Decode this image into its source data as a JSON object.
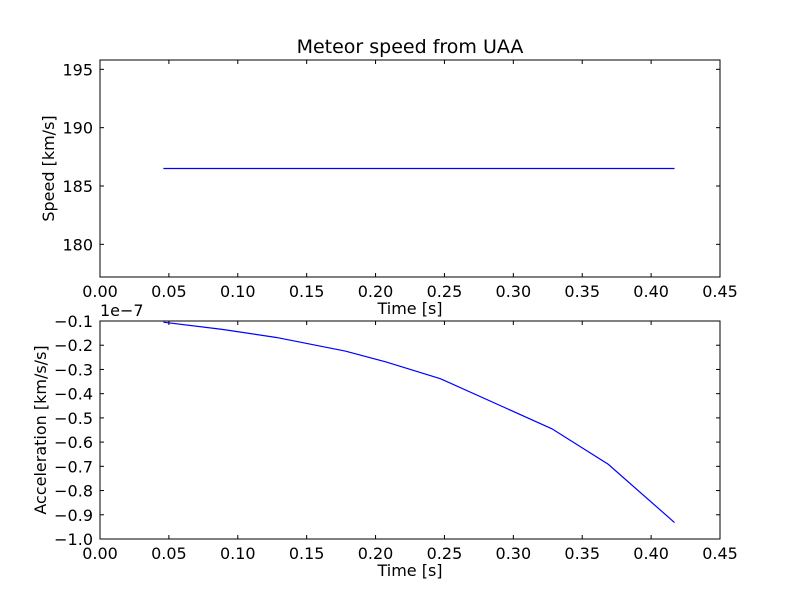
{
  "chart_data": [
    {
      "type": "line",
      "title": "Meteor speed from  UAA",
      "xlabel": "Time [s]",
      "ylabel": "Speed [km/s]",
      "xlim": [
        0.0,
        0.45
      ],
      "ylim": [
        177.2,
        195.8
      ],
      "xticks": [
        0.0,
        0.05,
        0.1,
        0.15,
        0.2,
        0.25,
        0.3,
        0.35,
        0.4,
        0.45
      ],
      "xtick_labels": [
        "0.00",
        "0.05",
        "0.10",
        "0.15",
        "0.20",
        "0.25",
        "0.30",
        "0.35",
        "0.40",
        "0.45"
      ],
      "yticks": [
        180,
        185,
        190,
        195
      ],
      "ytick_labels": [
        "180",
        "185",
        "190",
        "195"
      ],
      "grid": false,
      "series": [
        {
          "color": "#0000ff",
          "x": [
            0.046,
            0.417
          ],
          "y": [
            186.5,
            186.5
          ]
        }
      ]
    },
    {
      "type": "line",
      "title": "",
      "xlabel": "Time [s]",
      "ylabel": "Acceleration [km/s/s]",
      "offset_text": "1e−7",
      "xlim": [
        0.0,
        0.45
      ],
      "ylim": [
        -1.0,
        -0.1
      ],
      "xticks": [
        0.0,
        0.05,
        0.1,
        0.15,
        0.2,
        0.25,
        0.3,
        0.35,
        0.4,
        0.45
      ],
      "xtick_labels": [
        "0.00",
        "0.05",
        "0.10",
        "0.15",
        "0.20",
        "0.25",
        "0.30",
        "0.35",
        "0.40",
        "0.45"
      ],
      "yticks": [
        -1.0,
        -0.9,
        -0.8,
        -0.7,
        -0.6,
        -0.5,
        -0.4,
        -0.3,
        -0.2,
        -0.1
      ],
      "ytick_labels": [
        "−1.0",
        "−0.9",
        "−0.8",
        "−0.7",
        "−0.6",
        "−0.5",
        "−0.4",
        "−0.3",
        "−0.2",
        "−0.1"
      ],
      "grid": false,
      "series": [
        {
          "color": "#0000ff",
          "x": [
            0.046,
            0.088,
            0.128,
            0.178,
            0.207,
            0.247,
            0.328,
            0.369,
            0.417
          ],
          "y": [
            -0.105,
            -0.134,
            -0.168,
            -0.224,
            -0.268,
            -0.338,
            -0.545,
            -0.692,
            -0.932
          ]
        }
      ]
    }
  ]
}
